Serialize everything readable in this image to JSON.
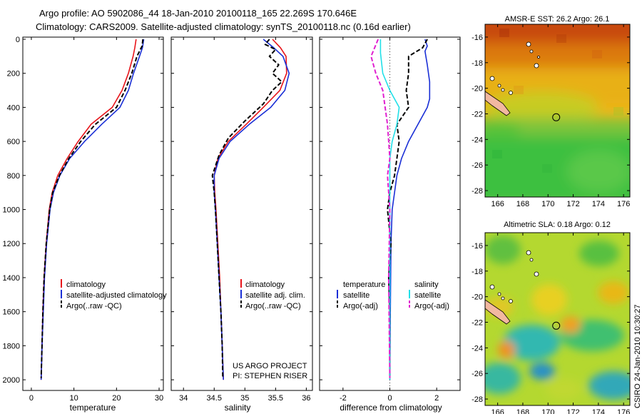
{
  "header": {
    "line1": "Argo profile: AO 5902086_44 18-Jan-2010 20100118_165 22.269S 170.646E",
    "line2": "Climatology: CARS2009. Satellite-adjusted climatology: synTS_20100118.nc (0.16d earlier)"
  },
  "credits": {
    "project": "US ARGO PROJECT",
    "pi": "PI: STEPHEN RISER",
    "stamp": "CSIRO 24-Jan-2010 10:30:27"
  },
  "colors": {
    "climatology": "#e8141a",
    "satellite": "#1a2fd6",
    "argo": "#000000",
    "sal_satellite": "#22e0e8",
    "sal_argo": "#e020d0"
  },
  "chart_data": [
    {
      "type": "line",
      "id": "temperature",
      "xlabel": "temperature",
      "ylabel": "",
      "xlim": [
        -2,
        31
      ],
      "ylim": [
        0,
        2050
      ],
      "y_reversed": true,
      "xticks": [
        0,
        10,
        20,
        30
      ],
      "yticks": [
        0,
        200,
        400,
        600,
        800,
        1000,
        1200,
        1400,
        1600,
        1800,
        2000
      ],
      "legend": [
        "climatology",
        "satellite-adjusted climatology",
        "Argo(..raw -QC)"
      ],
      "series": [
        {
          "name": "climatology",
          "color_key": "climatology",
          "dash": "solid",
          "points": [
            [
              24.6,
              0
            ],
            [
              24.3,
              50
            ],
            [
              23.9,
              100
            ],
            [
              22.8,
              200
            ],
            [
              21.3,
              300
            ],
            [
              19.0,
              400
            ],
            [
              14.0,
              500
            ],
            [
              11.0,
              600
            ],
            [
              8.4,
              700
            ],
            [
              6.2,
              800
            ],
            [
              4.9,
              900
            ],
            [
              4.2,
              1000
            ],
            [
              3.5,
              1200
            ],
            [
              3.0,
              1400
            ],
            [
              2.7,
              1600
            ],
            [
              2.5,
              1800
            ],
            [
              2.3,
              2000
            ]
          ]
        },
        {
          "name": "satellite-adjusted climatology",
          "color_key": "satellite",
          "dash": "solid",
          "points": [
            [
              26.4,
              0
            ],
            [
              26.1,
              50
            ],
            [
              25.4,
              100
            ],
            [
              24.0,
              200
            ],
            [
              22.8,
              300
            ],
            [
              20.8,
              400
            ],
            [
              16.5,
              500
            ],
            [
              12.5,
              600
            ],
            [
              9.0,
              700
            ],
            [
              6.7,
              800
            ],
            [
              5.2,
              900
            ],
            [
              4.4,
              1000
            ],
            [
              3.6,
              1200
            ],
            [
              3.1,
              1400
            ],
            [
              2.8,
              1600
            ],
            [
              2.5,
              1800
            ],
            [
              2.3,
              2000
            ]
          ]
        },
        {
          "name": "Argo(..raw -QC)",
          "color_key": "argo",
          "dash": "dash",
          "points": [
            [
              26.2,
              0
            ],
            [
              26.0,
              40
            ],
            [
              24.8,
              100
            ],
            [
              23.6,
              200
            ],
            [
              22.0,
              300
            ],
            [
              20.0,
              400
            ],
            [
              15.0,
              500
            ],
            [
              11.6,
              600
            ],
            [
              8.8,
              700
            ],
            [
              6.6,
              800
            ],
            [
              5.0,
              900
            ],
            [
              4.3,
              1000
            ],
            [
              3.5,
              1200
            ],
            [
              3.0,
              1400
            ],
            [
              2.7,
              1600
            ],
            [
              2.5,
              1800
            ],
            [
              2.3,
              1990
            ]
          ]
        }
      ]
    },
    {
      "type": "line",
      "id": "salinity",
      "xlabel": "salinity",
      "xlim": [
        33.8,
        36.1
      ],
      "ylim": [
        0,
        2050
      ],
      "y_reversed": true,
      "xticks": [
        34,
        34.5,
        35,
        35.5,
        36
      ],
      "legend": [
        "climatology",
        "satellite adj. clim.",
        "Argo(..raw -QC)"
      ],
      "series": [
        {
          "name": "climatology",
          "color_key": "climatology",
          "dash": "solid",
          "points": [
            [
              35.45,
              0
            ],
            [
              35.58,
              50
            ],
            [
              35.67,
              100
            ],
            [
              35.68,
              200
            ],
            [
              35.57,
              300
            ],
            [
              35.3,
              400
            ],
            [
              35.02,
              500
            ],
            [
              34.73,
              600
            ],
            [
              34.56,
              700
            ],
            [
              34.5,
              800
            ],
            [
              34.51,
              900
            ],
            [
              34.53,
              1000
            ],
            [
              34.56,
              1200
            ],
            [
              34.59,
              1400
            ],
            [
              34.61,
              1600
            ],
            [
              34.63,
              1800
            ],
            [
              34.65,
              2000
            ]
          ]
        },
        {
          "name": "satellite adj. clim.",
          "color_key": "satellite",
          "dash": "solid",
          "points": [
            [
              35.3,
              0
            ],
            [
              35.47,
              50
            ],
            [
              35.62,
              100
            ],
            [
              35.72,
              200
            ],
            [
              35.65,
              300
            ],
            [
              35.42,
              400
            ],
            [
              35.07,
              500
            ],
            [
              34.76,
              600
            ],
            [
              34.58,
              700
            ],
            [
              34.5,
              800
            ],
            [
              34.5,
              900
            ],
            [
              34.52,
              1000
            ],
            [
              34.55,
              1200
            ],
            [
              34.58,
              1400
            ],
            [
              34.61,
              1600
            ],
            [
              34.63,
              1800
            ],
            [
              34.65,
              2000
            ]
          ]
        },
        {
          "name": "Argo(..raw -QC)",
          "color_key": "argo",
          "dash": "dash",
          "points": [
            [
              35.4,
              0
            ],
            [
              35.33,
              30
            ],
            [
              35.5,
              60
            ],
            [
              35.4,
              100
            ],
            [
              35.55,
              150
            ],
            [
              35.45,
              200
            ],
            [
              35.6,
              250
            ],
            [
              35.45,
              300
            ],
            [
              35.3,
              380
            ],
            [
              35.0,
              480
            ],
            [
              34.73,
              580
            ],
            [
              34.58,
              680
            ],
            [
              34.47,
              800
            ],
            [
              34.5,
              900
            ],
            [
              34.52,
              1000
            ],
            [
              34.55,
              1200
            ],
            [
              34.58,
              1400
            ],
            [
              34.61,
              1600
            ],
            [
              34.63,
              1800
            ],
            [
              34.64,
              1990
            ]
          ]
        }
      ]
    },
    {
      "type": "line",
      "id": "difference",
      "xlabel": "difference from climatology",
      "xlim": [
        -3,
        3
      ],
      "ylim": [
        0,
        2050
      ],
      "y_reversed": true,
      "xticks": [
        -2,
        0,
        2
      ],
      "legend_groups": [
        {
          "title": "temperature",
          "items": [
            "satellite",
            "Argo(-adj)"
          ]
        },
        {
          "title": "salinity",
          "items": [
            "satellite",
            "Argo(-adj)"
          ]
        }
      ],
      "series": [
        {
          "name": "temperature satellite",
          "color_key": "satellite",
          "dash": "solid",
          "points": [
            [
              1.5,
              0
            ],
            [
              1.6,
              40
            ],
            [
              1.5,
              70
            ],
            [
              1.6,
              150
            ],
            [
              1.7,
              250
            ],
            [
              1.7,
              350
            ],
            [
              1.6,
              400
            ],
            [
              1.2,
              500
            ],
            [
              0.8,
              600
            ],
            [
              0.5,
              700
            ],
            [
              0.3,
              800
            ],
            [
              0.2,
              900
            ],
            [
              0.1,
              1000
            ],
            [
              0.05,
              1200
            ],
            [
              0.02,
              1600
            ],
            [
              0.0,
              2000
            ]
          ]
        },
        {
          "name": "temperature Argo(-adj)",
          "color_key": "argo",
          "dash": "dash",
          "points": [
            [
              1.6,
              0
            ],
            [
              1.4,
              50
            ],
            [
              0.8,
              100
            ],
            [
              0.8,
              200
            ],
            [
              0.7,
              300
            ],
            [
              0.8,
              400
            ],
            [
              0.3,
              500
            ],
            [
              0.4,
              600
            ],
            [
              0.3,
              700
            ],
            [
              0.2,
              800
            ],
            [
              0.0,
              900
            ],
            [
              -0.1,
              1000
            ],
            [
              0.05,
              1200
            ],
            [
              -0.05,
              1400
            ],
            [
              0.0,
              1600
            ],
            [
              0.0,
              1990
            ]
          ]
        },
        {
          "name": "salinity satellite",
          "color_key": "sal_satellite",
          "dash": "solid",
          "points": [
            [
              -0.4,
              0
            ],
            [
              -0.4,
              80
            ],
            [
              -0.3,
              200
            ],
            [
              0.0,
              300
            ],
            [
              0.4,
              400
            ],
            [
              0.3,
              500
            ],
            [
              0.1,
              600
            ],
            [
              0.0,
              700
            ],
            [
              0.0,
              2000
            ]
          ]
        },
        {
          "name": "salinity Argo(-adj)",
          "color_key": "sal_argo",
          "dash": "dash",
          "points": [
            [
              -0.5,
              0
            ],
            [
              -0.8,
              100
            ],
            [
              -0.6,
              200
            ],
            [
              -0.3,
              300
            ],
            [
              -0.2,
              400
            ],
            [
              -0.1,
              500
            ],
            [
              -0.05,
              600
            ],
            [
              0.0,
              700
            ],
            [
              -0.1,
              800
            ],
            [
              0.0,
              1000
            ],
            [
              -0.05,
              1400
            ],
            [
              0.0,
              1990
            ]
          ]
        }
      ]
    },
    {
      "type": "heatmap",
      "id": "sst_map",
      "title": "AMSR-E SST: 26.2 Argo: 26.1",
      "xlim": [
        165,
        176.5
      ],
      "ylim": [
        -28.5,
        -15
      ],
      "xticks": [
        166,
        168,
        170,
        172,
        174,
        176
      ],
      "yticks": [
        -16,
        -18,
        -20,
        -22,
        -24,
        -26,
        -28
      ],
      "float_position": [
        170.646,
        -22.269
      ]
    },
    {
      "type": "heatmap",
      "id": "sla_map",
      "title": "Altimetric SLA: 0.18 Argo: 0.12",
      "xlim": [
        165,
        176.5
      ],
      "ylim": [
        -28.5,
        -15
      ],
      "xticks": [
        166,
        168,
        170,
        172,
        174,
        176
      ],
      "yticks": [
        -16,
        -18,
        -20,
        -22,
        -24,
        -26,
        -28
      ],
      "float_position": [
        170.646,
        -22.269
      ]
    }
  ]
}
